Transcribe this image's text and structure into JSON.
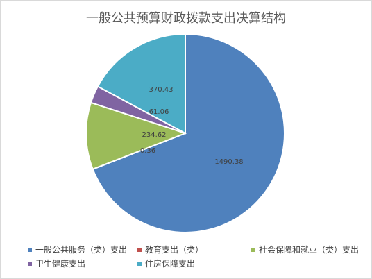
{
  "chart_data": {
    "type": "pie",
    "title": "一般公共预算财政拨款支出决算结构",
    "slices": [
      {
        "name": "一般公共服务（类）支出",
        "value": 1490.38,
        "label": "1490.38",
        "color": "#4F81BD"
      },
      {
        "name": "教育支出（类）",
        "value": 0.36,
        "label": "0.36",
        "color": "#C0504D"
      },
      {
        "name": "社会保障和就业（类）支出",
        "value": 234.62,
        "label": "234.62",
        "color": "#9BBB59"
      },
      {
        "name": "卫生健康支出",
        "value": 61.06,
        "label": "61.06",
        "color": "#8064A2"
      },
      {
        "name": "住房保障支出",
        "value": 370.43,
        "label": "370.43",
        "color": "#4BACC6"
      }
    ],
    "legend_position": "bottom"
  }
}
